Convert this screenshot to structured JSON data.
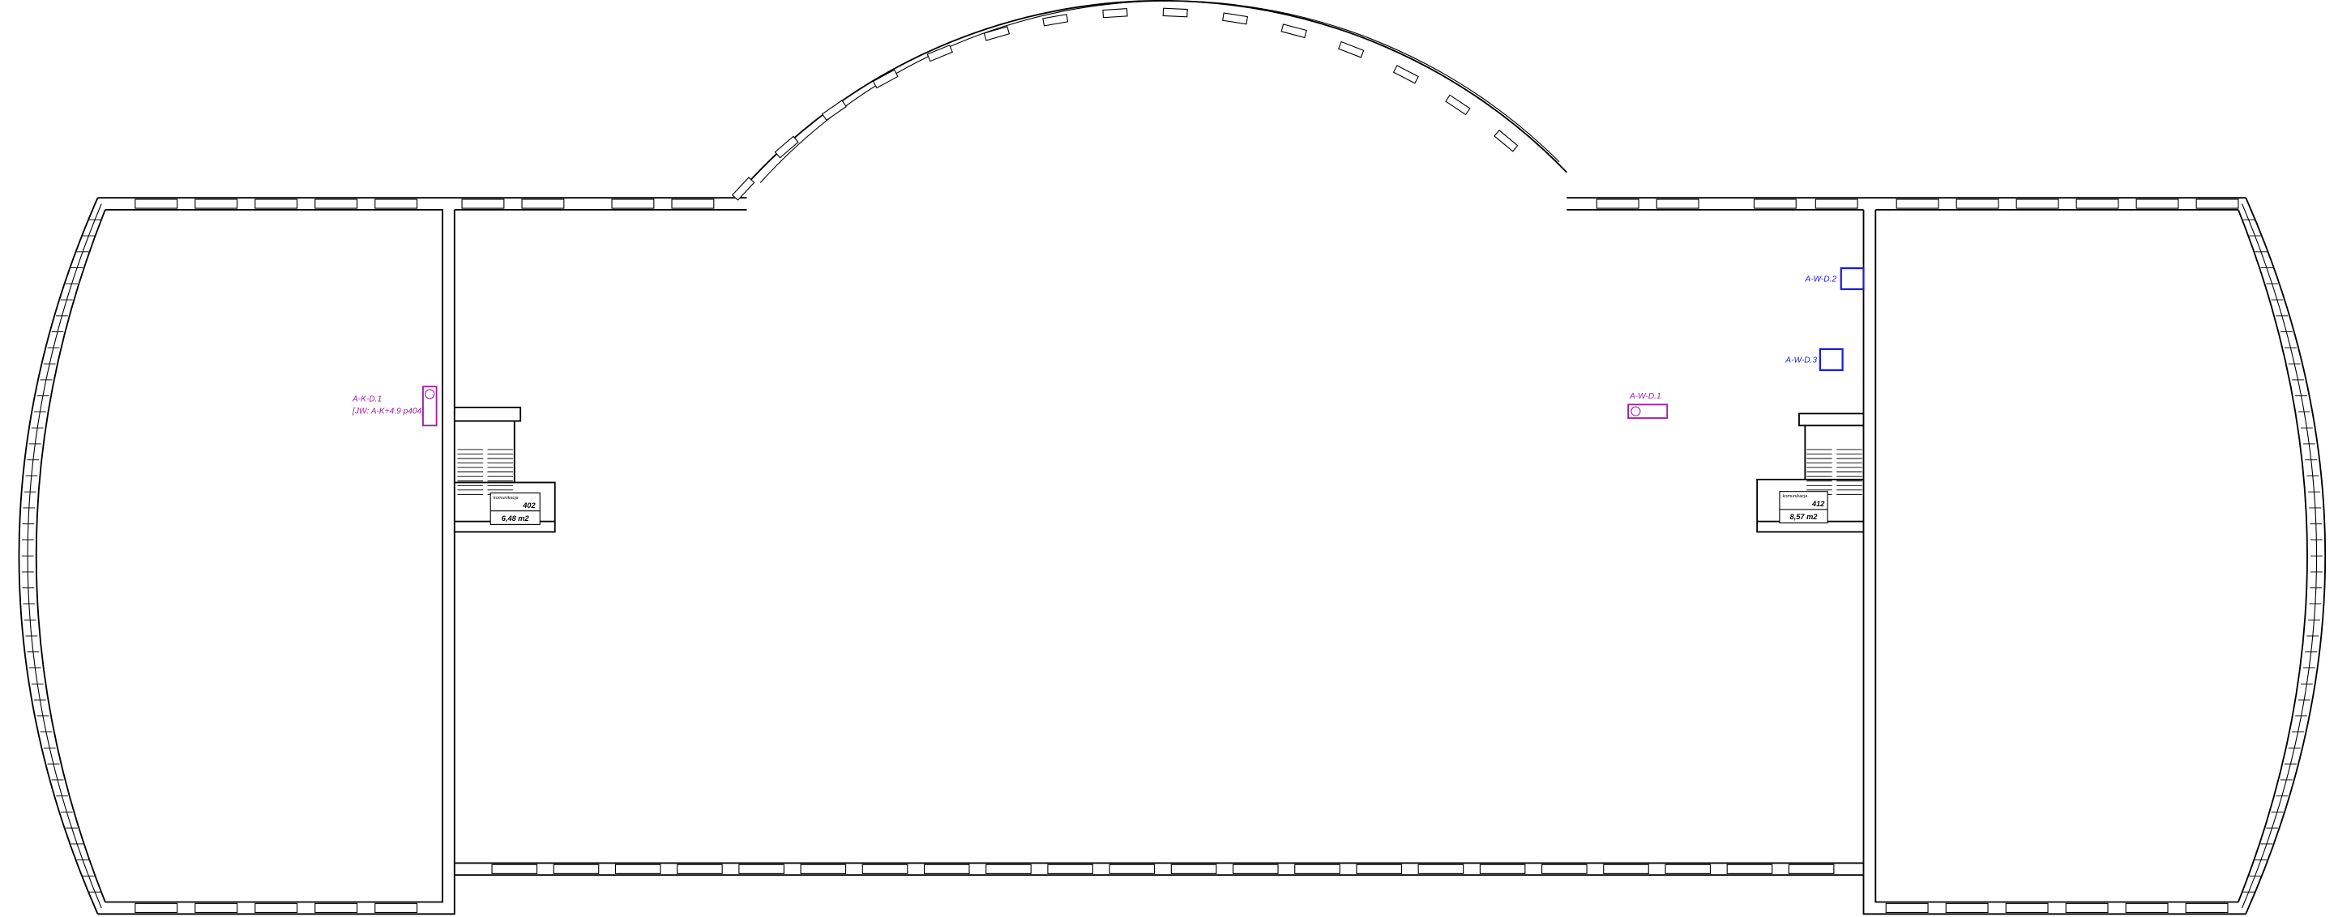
{
  "tags": [
    {
      "label": "A-K-D.1",
      "note": "[JW: A-K+4.9 p404]"
    },
    {
      "label": "A-W-D.1"
    },
    {
      "label": "A-W-D.2"
    },
    {
      "label": "A-W-D.3"
    }
  ],
  "rooms": [
    {
      "name": "komunikacja",
      "number": "402",
      "area": "6,48 m2"
    },
    {
      "name": "komunikacja",
      "number": "412",
      "area": "8,57 m2"
    }
  ]
}
